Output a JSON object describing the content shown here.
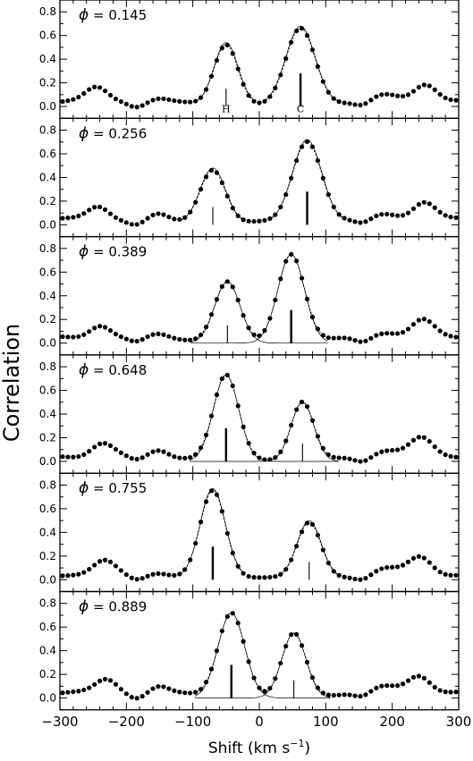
{
  "chart_data": {
    "type": "scatter",
    "title": "",
    "xlabel_main": "Shift",
    "xlabel_unit": "(km s",
    "xlabel_exp": "−1",
    "xlabel_close": ")",
    "ylabel": "Correlation",
    "xlim": [
      -300,
      300
    ],
    "ylim": [
      -0.1,
      0.9
    ],
    "x_ticks": [
      -300,
      -200,
      -100,
      0,
      100,
      200,
      300
    ],
    "x_tick_labels": [
      "−300",
      "−200",
      "−100",
      "0",
      "100",
      "200",
      "300"
    ],
    "y_ticks": [
      0.0,
      0.2,
      0.4,
      0.6,
      0.8
    ],
    "y_tick_labels": [
      "0.0",
      "0.2",
      "0.4",
      "0.6",
      "0.8"
    ],
    "phase_symbol": "ϕ",
    "panels": [
      {
        "phase_label": "= 0.145",
        "peaks": [
          {
            "label": "H",
            "center": -50,
            "height": 0.52,
            "sigma": 18,
            "marker_height": 0.15,
            "marker_bold": false
          },
          {
            "label": "C",
            "center": 62,
            "height": 0.66,
            "sigma": 22,
            "marker_height": 0.28,
            "marker_bold": true
          }
        ],
        "fit_style": "combined"
      },
      {
        "phase_label": "= 0.256",
        "peaks": [
          {
            "label": "",
            "center": -70,
            "height": 0.46,
            "sigma": 19,
            "marker_height": 0.15,
            "marker_bold": false
          },
          {
            "label": "",
            "center": 72,
            "height": 0.7,
            "sigma": 22,
            "marker_height": 0.28,
            "marker_bold": true
          }
        ],
        "fit_style": "separate"
      },
      {
        "phase_label": "= 0.389",
        "peaks": [
          {
            "label": "",
            "center": -48,
            "height": 0.52,
            "sigma": 19,
            "marker_height": 0.15,
            "marker_bold": false
          },
          {
            "label": "",
            "center": 48,
            "height": 0.75,
            "sigma": 20,
            "marker_height": 0.28,
            "marker_bold": true
          }
        ],
        "fit_style": "full"
      },
      {
        "phase_label": "= 0.648",
        "peaks": [
          {
            "label": "",
            "center": -50,
            "height": 0.73,
            "sigma": 19,
            "marker_height": 0.28,
            "marker_bold": true
          },
          {
            "label": "",
            "center": 65,
            "height": 0.5,
            "sigma": 17,
            "marker_height": 0.15,
            "marker_bold": false
          }
        ],
        "fit_style": "full"
      },
      {
        "phase_label": "= 0.755",
        "peaks": [
          {
            "label": "",
            "center": -70,
            "height": 0.75,
            "sigma": 19,
            "marker_height": 0.28,
            "marker_bold": true
          },
          {
            "label": "",
            "center": 75,
            "height": 0.48,
            "sigma": 18,
            "marker_height": 0.15,
            "marker_bold": false
          }
        ],
        "fit_style": "separate"
      },
      {
        "phase_label": "= 0.889",
        "peaks": [
          {
            "label": "",
            "center": -42,
            "height": 0.72,
            "sigma": 20,
            "marker_height": 0.28,
            "marker_bold": true
          },
          {
            "label": "",
            "center": 52,
            "height": 0.55,
            "sigma": 18,
            "marker_height": 0.15,
            "marker_bold": false
          }
        ],
        "fit_style": "full"
      }
    ]
  }
}
